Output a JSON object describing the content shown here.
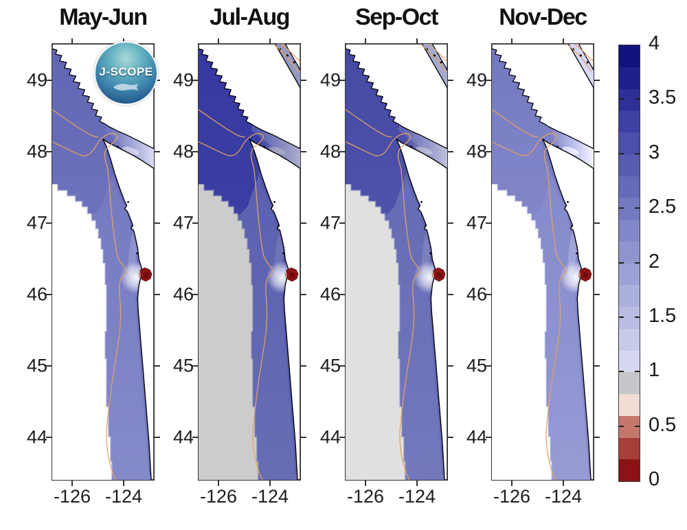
{
  "figure": {
    "panels": [
      {
        "title": "May-Jun"
      },
      {
        "title": "Jul-Aug"
      },
      {
        "title": "Sep-Oct"
      },
      {
        "title": "Nov-Dec"
      }
    ],
    "y_ticks": [
      "49",
      "48",
      "47",
      "46",
      "45",
      "44"
    ],
    "x_ticks": [
      "-126",
      "-124"
    ],
    "logo": {
      "text": "J-SCOPE"
    },
    "colorbar": {
      "orientation": "vertical",
      "value_range": [
        0,
        4
      ],
      "segment_step": 0.2,
      "tick_labels": [
        "4",
        "3.5",
        "3",
        "2.5",
        "2",
        "1.5",
        "1",
        "0.5",
        "0"
      ],
      "tick_values": [
        4,
        3.5,
        3,
        2.5,
        2,
        1.5,
        1,
        0.5,
        0
      ],
      "segments_top_to_bottom": [
        "#12127f",
        "#1f2089",
        "#2e2f97",
        "#3d3fa2",
        "#4c4fab",
        "#585cb1",
        "#666bb9",
        "#747ac1",
        "#8187c8",
        "#8f94cf",
        "#9da2d6",
        "#abb0dd",
        "#b9bde3",
        "#c7cbea",
        "#d6d8f1",
        "#c6c5c9",
        "#f1ddd3",
        "#c5776b",
        "#a63f37",
        "#8c1315"
      ]
    },
    "map_colors": {
      "ocean_base": "#7b80c3",
      "contour": "#e2a263",
      "land": "#ffffff",
      "coastline": "#000000",
      "low_saturation_spot": "#8c1315"
    }
  }
}
